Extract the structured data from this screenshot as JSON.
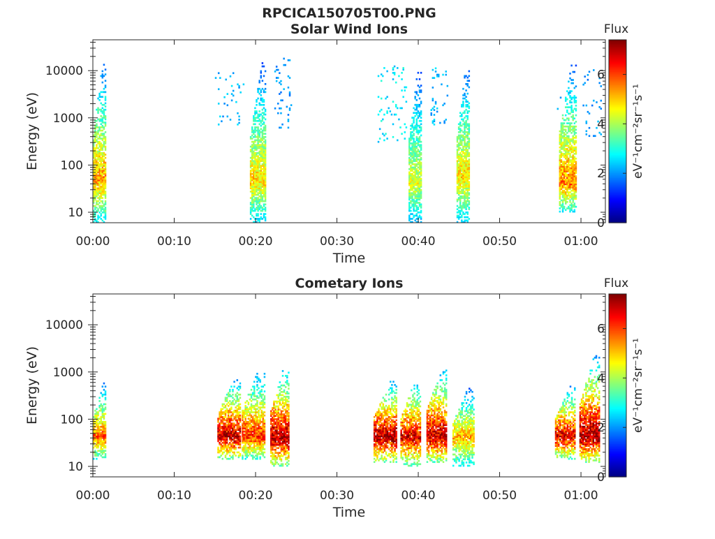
{
  "figure": {
    "title": "RPCICA150705T00.PNG"
  },
  "chart_data": [
    {
      "type": "heatmap",
      "title": "Solar Wind Ions",
      "xlabel": "Time",
      "ylabel": "Energy (eV)",
      "x_tick_labels": [
        "00:00",
        "00:10",
        "00:20",
        "00:30",
        "00:40",
        "00:50",
        "01:00"
      ],
      "x_range_minutes": [
        0,
        63
      ],
      "y_scale": "log",
      "y_tick_labels": [
        "10",
        "100",
        "1000",
        "10000"
      ],
      "y_range": [
        6,
        45000
      ],
      "colorbar": {
        "title": "Flux",
        "units": "eV⁻¹cm⁻²sr⁻¹s⁻¹",
        "range": [
          0,
          7.4
        ],
        "tick_labels": [
          "0",
          "2",
          "4",
          "6"
        ],
        "colormap": "jet"
      },
      "bursts": [
        {
          "t_start_min": 0.0,
          "t_end_min": 1.6,
          "e_min": 6,
          "e_max": 17000,
          "peak_flux": 5.3,
          "peak_energy": 50
        },
        {
          "t_start_min": 19.3,
          "t_end_min": 21.2,
          "e_min": 6,
          "e_max": 14000,
          "peak_flux": 4.9,
          "peak_energy": 45
        },
        {
          "t_start_min": 38.8,
          "t_end_min": 40.3,
          "e_min": 6,
          "e_max": 11000,
          "peak_flux": 4.4,
          "peak_energy": 40
        },
        {
          "t_start_min": 44.7,
          "t_end_min": 46.2,
          "e_min": 6,
          "e_max": 13000,
          "peak_flux": 4.9,
          "peak_energy": 55
        },
        {
          "t_start_min": 57.3,
          "t_end_min": 59.3,
          "e_min": 10,
          "e_max": 13000,
          "peak_flux": 5.6,
          "peak_energy": 40
        }
      ],
      "sparse_clusters": [
        {
          "t_start_min": 15.0,
          "t_end_min": 18.5,
          "e_min": 700,
          "e_max": 9000,
          "flux": 2.2
        },
        {
          "t_start_min": 22.3,
          "t_end_min": 24.3,
          "e_min": 600,
          "e_max": 20000,
          "flux": 2.0
        },
        {
          "t_start_min": 35.0,
          "t_end_min": 38.5,
          "e_min": 300,
          "e_max": 12000,
          "flux": 2.6
        },
        {
          "t_start_min": 41.5,
          "t_end_min": 43.5,
          "e_min": 700,
          "e_max": 11000,
          "flux": 2.2
        },
        {
          "t_start_min": 56.5,
          "t_end_min": 57.5,
          "e_min": 1500,
          "e_max": 3000,
          "flux": 2.0
        },
        {
          "t_start_min": 60.2,
          "t_end_min": 62.5,
          "e_min": 400,
          "e_max": 10000,
          "flux": 2.0
        }
      ]
    },
    {
      "type": "heatmap",
      "title": "Cometary Ions",
      "xlabel": "Time",
      "ylabel": "Energy (eV)",
      "x_tick_labels": [
        "00:00",
        "00:10",
        "00:20",
        "00:30",
        "00:40",
        "00:50",
        "01:00"
      ],
      "x_range_minutes": [
        0,
        63
      ],
      "y_scale": "log",
      "y_tick_labels": [
        "10",
        "100",
        "1000",
        "10000"
      ],
      "y_range": [
        6,
        45000
      ],
      "colorbar": {
        "title": "Flux",
        "units": "eV⁻¹cm⁻²sr⁻¹s⁻¹",
        "range": [
          0,
          7.4
        ],
        "tick_labels": [
          "0",
          "2",
          "4",
          "6"
        ],
        "colormap": "jet"
      },
      "bursts": [
        {
          "t_start_min": 0.0,
          "t_end_min": 1.5,
          "e_min": 14,
          "e_max": 600,
          "peak_flux": 5.8,
          "peak_energy": 40
        },
        {
          "t_start_min": 15.3,
          "t_end_min": 18.0,
          "e_min": 14,
          "e_max": 750,
          "peak_flux": 7.0,
          "peak_energy": 42
        },
        {
          "t_start_min": 18.3,
          "t_end_min": 21.0,
          "e_min": 14,
          "e_max": 1100,
          "peak_flux": 6.2,
          "peak_energy": 42
        },
        {
          "t_start_min": 21.8,
          "t_end_min": 24.0,
          "e_min": 10,
          "e_max": 1300,
          "peak_flux": 7.1,
          "peak_energy": 40
        },
        {
          "t_start_min": 34.5,
          "t_end_min": 37.3,
          "e_min": 12,
          "e_max": 650,
          "peak_flux": 7.2,
          "peak_energy": 42
        },
        {
          "t_start_min": 37.8,
          "t_end_min": 40.2,
          "e_min": 10,
          "e_max": 700,
          "peak_flux": 6.7,
          "peak_energy": 40
        },
        {
          "t_start_min": 41.0,
          "t_end_min": 43.5,
          "e_min": 12,
          "e_max": 1200,
          "peak_flux": 7.0,
          "peak_energy": 42
        },
        {
          "t_start_min": 44.2,
          "t_end_min": 46.8,
          "e_min": 10,
          "e_max": 460,
          "peak_flux": 5.3,
          "peak_energy": 42
        },
        {
          "t_start_min": 56.8,
          "t_end_min": 59.3,
          "e_min": 14,
          "e_max": 500,
          "peak_flux": 6.8,
          "peak_energy": 42
        },
        {
          "t_start_min": 59.8,
          "t_end_min": 62.2,
          "e_min": 12,
          "e_max": 2200,
          "peak_flux": 7.3,
          "peak_energy": 42
        }
      ],
      "sparse_clusters": []
    }
  ]
}
